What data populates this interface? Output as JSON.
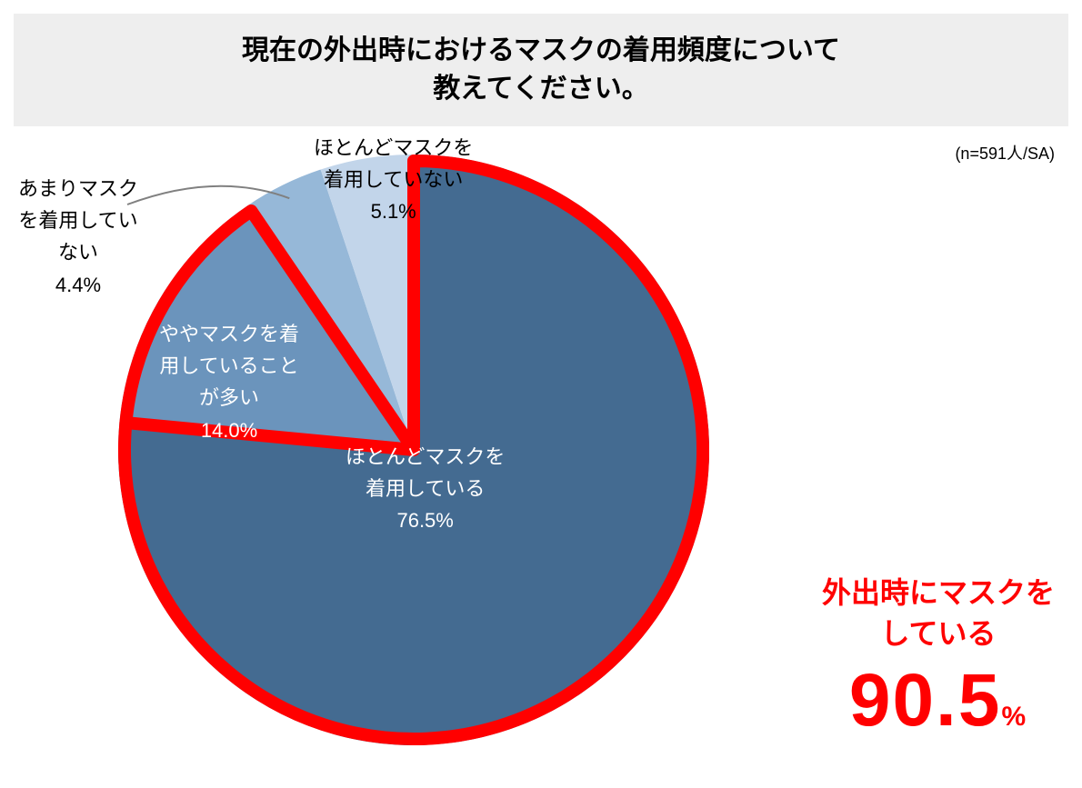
{
  "title_line1": "現在の外出時におけるマスクの着用頻度について",
  "title_line2": "教えてください。",
  "sample_label": "(n=591人/SA)",
  "chart": {
    "type": "pie",
    "radius": 325,
    "highlight_stroke": "#ff0000",
    "highlight_stroke_width": 14,
    "leader_color": "#808080",
    "background": "#ffffff",
    "slices": [
      {
        "key": "mostly_wear",
        "label_l1": "ほとんどマスクを",
        "label_l2": "着用している",
        "pct": 76.5,
        "pct_text": "76.5%",
        "color": "#446b91",
        "highlighted": true,
        "text_on_slice": true
      },
      {
        "key": "often_wear",
        "label_l1": "ややマスクを着",
        "label_l2": "用していること",
        "label_l3": "が多い",
        "pct": 14.0,
        "pct_text": "14.0%",
        "color": "#6b94bc",
        "highlighted": true,
        "text_on_slice": true
      },
      {
        "key": "seldom_wear",
        "label_l1": "あまりマスク",
        "label_l2": "を着用してい",
        "label_l3": "ない",
        "pct": 4.4,
        "pct_text": "4.4%",
        "color": "#96b8d8",
        "highlighted": false,
        "text_on_slice": false
      },
      {
        "key": "barely_wear",
        "label_l1": "ほとんどマスクを",
        "label_l2": "着用していない",
        "pct": 5.1,
        "pct_text": "5.1%",
        "color": "#c2d5ea",
        "highlighted": false,
        "text_on_slice": false
      }
    ]
  },
  "callout": {
    "line1": "外出時にマスクを",
    "line2": "している",
    "value": "90.5",
    "unit": "%",
    "color": "#ff0000"
  },
  "fonts": {
    "title_size": 30,
    "label_size": 22,
    "sample_size": 18,
    "callout_phrase_size": 32,
    "callout_value_size": 82,
    "callout_unit_size": 30
  }
}
